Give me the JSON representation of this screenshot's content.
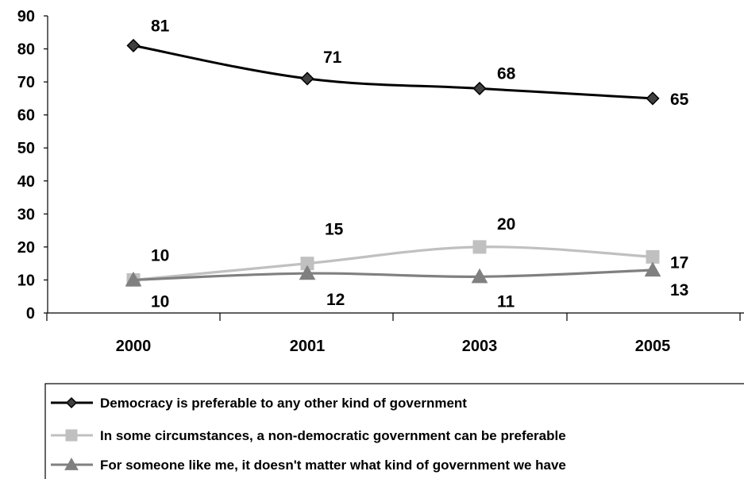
{
  "chart_data": {
    "type": "line",
    "title": "",
    "xlabel": "",
    "ylabel": "",
    "categories": [
      "2000",
      "2001",
      "2003",
      "2005"
    ],
    "ylim": [
      0,
      90
    ],
    "yticks": [
      0,
      10,
      20,
      30,
      40,
      50,
      60,
      70,
      80,
      90
    ],
    "grid": false,
    "legend_position": "bottom",
    "series": [
      {
        "name": "Democracy is preferable to any other kind of government",
        "values": [
          81,
          71,
          68,
          65
        ],
        "color": "#000000",
        "marker": "diamond",
        "labels": [
          "81",
          "71",
          "68",
          "65"
        ]
      },
      {
        "name": "In some circumstances, a non-democratic government can be preferable",
        "values": [
          10,
          15,
          20,
          17
        ],
        "color": "#c0c0c0",
        "marker": "square",
        "labels": [
          "10",
          "15",
          "20",
          "17"
        ]
      },
      {
        "name": "For someone like me, it doesn't matter what kind of government we have",
        "values": [
          10,
          12,
          11,
          13
        ],
        "color": "#808080",
        "marker": "triangle",
        "labels": [
          "10",
          "12",
          "11",
          "13"
        ]
      }
    ]
  }
}
